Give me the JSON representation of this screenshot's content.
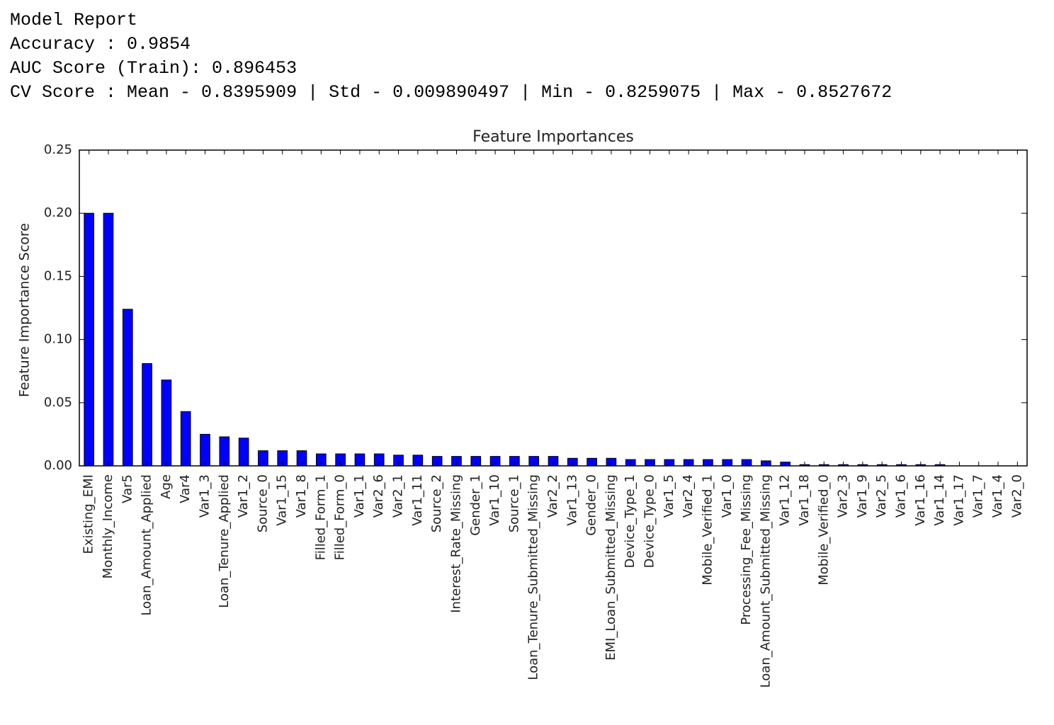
{
  "report": {
    "lines": [
      "Model Report",
      "Accuracy : 0.9854",
      "AUC Score (Train): 0.896453",
      "CV Score : Mean - 0.8395909 | Std - 0.009890497 | Min - 0.8259075 | Max - 0.8527672"
    ]
  },
  "chart_data": {
    "type": "bar",
    "title": "Feature Importances",
    "y_label": "Feature Importance Score",
    "categories": [
      "Existing_EMI",
      "Monthly_Income",
      "Var5",
      "Loan_Amount_Applied",
      "Age",
      "Var4",
      "Var1_3",
      "Loan_Tenure_Applied",
      "Var1_2",
      "Source_0",
      "Var1_15",
      "Var1_8",
      "Filled_Form_1",
      "Filled_Form_0",
      "Var1_1",
      "Var2_6",
      "Var2_1",
      "Var1_11",
      "Source_2",
      "Interest_Rate_Missing",
      "Gender_1",
      "Var1_10",
      "Source_1",
      "Loan_Tenure_Submitted_Missing",
      "Var2_2",
      "Var1_13",
      "Gender_0",
      "EMI_Loan_Submitted_Missing",
      "Device_Type_1",
      "Device_Type_0",
      "Var1_5",
      "Var2_4",
      "Mobile_Verified_1",
      "Var1_0",
      "Processing_Fee_Missing",
      "Loan_Amount_Submitted_Missing",
      "Var1_12",
      "Var1_18",
      "Mobile_Verified_0",
      "Var2_3",
      "Var1_9",
      "Var2_5",
      "Var1_6",
      "Var1_16",
      "Var1_14",
      "Var1_17",
      "Var1_7",
      "Var1_4",
      "Var2_0"
    ],
    "values": [
      0.2,
      0.2,
      0.124,
      0.081,
      0.068,
      0.043,
      0.025,
      0.023,
      0.022,
      0.012,
      0.012,
      0.012,
      0.0095,
      0.0095,
      0.0095,
      0.0095,
      0.0085,
      0.0085,
      0.0075,
      0.0075,
      0.0075,
      0.0075,
      0.0075,
      0.0075,
      0.0075,
      0.006,
      0.006,
      0.006,
      0.005,
      0.005,
      0.005,
      0.005,
      0.005,
      0.005,
      0.005,
      0.004,
      0.003,
      0.001,
      0.001,
      0.001,
      0.001,
      0.001,
      0.001,
      0.001,
      0.001,
      0,
      0,
      0,
      0
    ],
    "color": "#0000ff",
    "ylim": [
      0,
      0.25
    ],
    "yticks": [
      {
        "value": 0,
        "label": "0.00"
      },
      0.05,
      {
        "value": 0.1,
        "label": "0.10"
      },
      0.15,
      {
        "value": 0.2,
        "label": "0.20"
      },
      0.25
    ],
    "grid": false
  }
}
